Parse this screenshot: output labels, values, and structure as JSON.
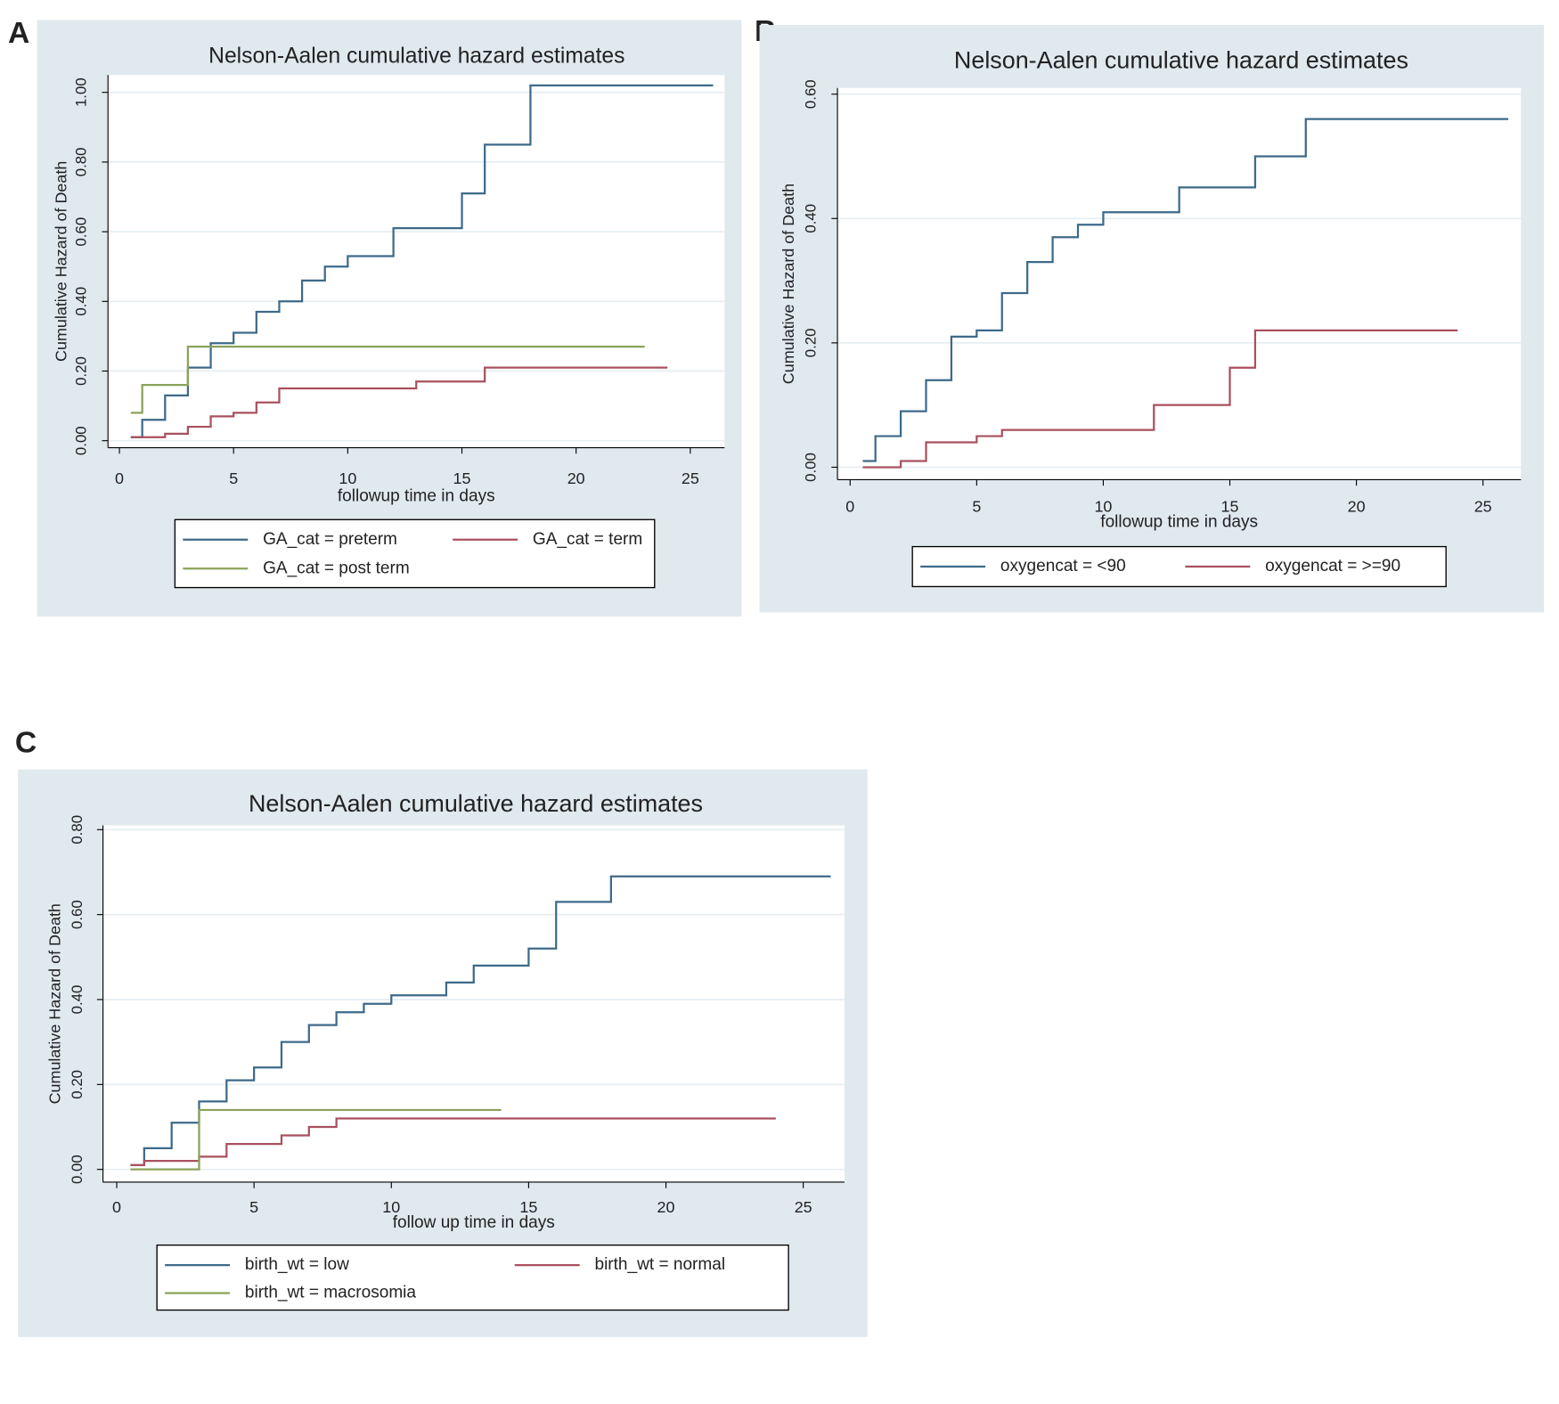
{
  "chart_data": [
    {
      "type": "step",
      "panel": "A",
      "title": "Nelson-Aalen cumulative hazard estimates",
      "xlabel": "followup time in days",
      "ylabel": "Cumulative Hazard of Death",
      "xlim": [
        -0.5,
        26.5
      ],
      "xticks": [
        0,
        5,
        10,
        15,
        20,
        25
      ],
      "ylim": [
        -0.02,
        1.05
      ],
      "yticks": [
        {
          "value": 0,
          "label": "0.00"
        },
        {
          "value": 0.2,
          "label": "0.20"
        },
        {
          "value": 0.4,
          "label": "0.40"
        },
        {
          "value": 0.6,
          "label": "0.60"
        },
        {
          "value": 0.8,
          "label": "0.80"
        },
        {
          "value": 1,
          "label": "1.00"
        }
      ],
      "grid": true,
      "series": [
        {
          "name": "GA_cat = preterm",
          "color": "#3d6a8a",
          "x": [
            0.5,
            1,
            2,
            3,
            4,
            5,
            6,
            7,
            8,
            9,
            10,
            12,
            15,
            16,
            18,
            26
          ],
          "values": [
            0.01,
            0.06,
            0.13,
            0.21,
            0.28,
            0.31,
            0.37,
            0.4,
            0.46,
            0.5,
            0.53,
            0.61,
            0.71,
            0.85,
            1.02,
            1.02
          ]
        },
        {
          "name": "GA_cat = term",
          "color": "#a9505f",
          "x": [
            0.5,
            2,
            3,
            4,
            5,
            6,
            7,
            13,
            16,
            24
          ],
          "values": [
            0.01,
            0.02,
            0.04,
            0.07,
            0.08,
            0.11,
            0.15,
            0.17,
            0.21,
            0.21
          ]
        },
        {
          "name": "GA_cat = post term",
          "color": "#8ba25a",
          "x": [
            0.5,
            1,
            3,
            23
          ],
          "values": [
            0.08,
            0.16,
            0.27,
            0.27
          ]
        }
      ]
    },
    {
      "type": "step",
      "panel": "B",
      "title": "Nelson-Aalen cumulative hazard estimates",
      "xlabel": "followup time in days",
      "ylabel": "Cumulative Hazard of Death",
      "xlim": [
        -0.5,
        26.5
      ],
      "xticks": [
        0,
        5,
        10,
        15,
        20,
        25
      ],
      "ylim": [
        -0.02,
        0.61
      ],
      "yticks": [
        {
          "value": 0,
          "label": "0.00"
        },
        {
          "value": 0.2,
          "label": "0.20"
        },
        {
          "value": 0.4,
          "label": "0.40"
        },
        {
          "value": 0.6,
          "label": "0.60"
        }
      ],
      "grid": true,
      "series": [
        {
          "name": "oxygencat = <90",
          "color": "#3d6a8a",
          "x": [
            0.5,
            1,
            2,
            3,
            4,
            5,
            6,
            7,
            8,
            9,
            10,
            13,
            16,
            18,
            26
          ],
          "values": [
            0.01,
            0.05,
            0.09,
            0.14,
            0.21,
            0.22,
            0.28,
            0.33,
            0.37,
            0.39,
            0.41,
            0.45,
            0.5,
            0.56,
            0.56
          ]
        },
        {
          "name": "oxygencat = >=90",
          "color": "#a9505f",
          "x": [
            0.5,
            2,
            3,
            5,
            6,
            12,
            15,
            16,
            24
          ],
          "values": [
            0,
            0.01,
            0.04,
            0.05,
            0.06,
            0.1,
            0.16,
            0.22,
            0.22
          ]
        }
      ]
    },
    {
      "type": "step",
      "panel": "C",
      "title": "Nelson-Aalen cumulative hazard estimates",
      "xlabel": "follow up time in days",
      "ylabel": "Cumulative Hazard of Death",
      "xlim": [
        -0.5,
        26.5
      ],
      "xticks": [
        0,
        5,
        10,
        15,
        20,
        25
      ],
      "ylim": [
        -0.03,
        0.81
      ],
      "yticks": [
        {
          "value": 0,
          "label": "0.00"
        },
        {
          "value": 0.2,
          "label": "0.20"
        },
        {
          "value": 0.4,
          "label": "0.40"
        },
        {
          "value": 0.6,
          "label": "0.60"
        },
        {
          "value": 0.8,
          "label": "0.80"
        }
      ],
      "grid": true,
      "series": [
        {
          "name": "birth_wt = low",
          "color": "#3d6a8a",
          "x": [
            0.5,
            1,
            2,
            3,
            4,
            5,
            6,
            7,
            8,
            9,
            10,
            12,
            13,
            15,
            16,
            18,
            26
          ],
          "values": [
            0.01,
            0.05,
            0.11,
            0.16,
            0.21,
            0.24,
            0.3,
            0.34,
            0.37,
            0.39,
            0.41,
            0.44,
            0.48,
            0.52,
            0.63,
            0.69,
            0.69
          ]
        },
        {
          "name": "birth_wt = normal",
          "color": "#a9505f",
          "x": [
            0.5,
            1,
            3,
            4,
            6,
            7,
            8,
            24
          ],
          "values": [
            0.01,
            0.02,
            0.03,
            0.06,
            0.08,
            0.1,
            0.12,
            0.12
          ]
        },
        {
          "name": "birth_wt = macrosomia",
          "color": "#8ba25a",
          "x": [
            0.5,
            3,
            14
          ],
          "values": [
            0,
            0.14,
            0.14
          ]
        }
      ]
    }
  ]
}
